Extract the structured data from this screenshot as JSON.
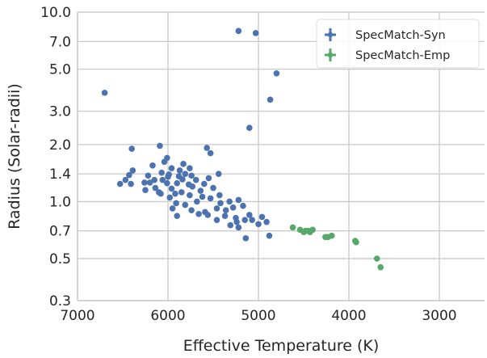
{
  "chart_data": {
    "type": "scatter",
    "xlabel": "Effective Temperature (K)",
    "ylabel": "Radius (Solar-radii)",
    "xlim": [
      7000,
      2500
    ],
    "x_reversed": true,
    "ylim": [
      0.3,
      10.0
    ],
    "yscale": "log",
    "grid": true,
    "legend_position": "top-right",
    "x_ticks": [
      7000,
      6000,
      5000,
      4000,
      3000
    ],
    "x_tick_labels": [
      "7000",
      "6000",
      "5000",
      "4000",
      "3000"
    ],
    "y_ticks": [
      0.3,
      0.5,
      0.7,
      1.0,
      1.4,
      2.0,
      3.0,
      5.0,
      7.0,
      10.0
    ],
    "y_tick_labels": [
      "0.3",
      "0.5",
      "0.7",
      "1.0",
      "1.4",
      "2.0",
      "3.0",
      "5.0",
      "7.0",
      "10.0"
    ],
    "series": [
      {
        "name": "SpecMatch-Syn",
        "color": "#4c72b0",
        "points": [
          [
            6700,
            3.75
          ],
          [
            5220,
            7.95
          ],
          [
            5030,
            7.75
          ],
          [
            4800,
            4.75
          ],
          [
            4870,
            3.45
          ],
          [
            5100,
            2.45
          ],
          [
            6090,
            1.97
          ],
          [
            5570,
            1.92
          ],
          [
            6400,
            1.9
          ],
          [
            5530,
            1.8
          ],
          [
            6010,
            1.7
          ],
          [
            6040,
            1.62
          ],
          [
            6170,
            1.55
          ],
          [
            5830,
            1.58
          ],
          [
            5960,
            1.5
          ],
          [
            5760,
            1.5
          ],
          [
            6390,
            1.46
          ],
          [
            5870,
            1.46
          ],
          [
            6070,
            1.42
          ],
          [
            5810,
            1.4
          ],
          [
            5990,
            1.39
          ],
          [
            6430,
            1.38
          ],
          [
            6220,
            1.37
          ],
          [
            6000,
            1.35
          ],
          [
            5880,
            1.36
          ],
          [
            5740,
            1.37
          ],
          [
            5440,
            1.4
          ],
          [
            5550,
            1.33
          ],
          [
            6470,
            1.3
          ],
          [
            6150,
            1.3
          ],
          [
            6060,
            1.3
          ],
          [
            5840,
            1.31
          ],
          [
            5690,
            1.3
          ],
          [
            6530,
            1.24
          ],
          [
            6410,
            1.24
          ],
          [
            6260,
            1.26
          ],
          [
            6200,
            1.26
          ],
          [
            6010,
            1.25
          ],
          [
            5900,
            1.25
          ],
          [
            5770,
            1.23
          ],
          [
            5600,
            1.24
          ],
          [
            6140,
            1.18
          ],
          [
            5960,
            1.17
          ],
          [
            5730,
            1.2
          ],
          [
            6250,
            1.15
          ],
          [
            6100,
            1.12
          ],
          [
            6080,
            1.1
          ],
          [
            5920,
            1.1
          ],
          [
            5850,
            1.12
          ],
          [
            5640,
            1.14
          ],
          [
            5500,
            1.18
          ],
          [
            5980,
            1.05
          ],
          [
            5760,
            1.08
          ],
          [
            5620,
            1.06
          ],
          [
            5530,
            1.04
          ],
          [
            5430,
            1.08
          ],
          [
            5910,
            0.98
          ],
          [
            5810,
            0.96
          ],
          [
            5680,
            1.0
          ],
          [
            5420,
            0.98
          ],
          [
            5320,
            1.0
          ],
          [
            5220,
            1.02
          ],
          [
            5950,
            0.92
          ],
          [
            5740,
            0.9
          ],
          [
            5590,
            0.88
          ],
          [
            5460,
            0.92
          ],
          [
            5360,
            0.9
          ],
          [
            5280,
            0.93
          ],
          [
            5170,
            0.95
          ],
          [
            5900,
            0.84
          ],
          [
            5660,
            0.86
          ],
          [
            5560,
            0.85
          ],
          [
            5460,
            0.8
          ],
          [
            5370,
            0.84
          ],
          [
            5250,
            0.82
          ],
          [
            5100,
            0.85
          ],
          [
            5070,
            0.8
          ],
          [
            4960,
            0.83
          ],
          [
            5240,
            0.78
          ],
          [
            5150,
            0.8
          ],
          [
            5310,
            0.75
          ],
          [
            5220,
            0.73
          ],
          [
            4910,
            0.78
          ],
          [
            5000,
            0.76
          ],
          [
            5140,
            0.64
          ],
          [
            4880,
            0.66
          ]
        ]
      },
      {
        "name": "SpecMatch-Emp",
        "color": "#55a868",
        "points": [
          [
            4620,
            0.73
          ],
          [
            4540,
            0.71
          ],
          [
            4500,
            0.69
          ],
          [
            4480,
            0.7
          ],
          [
            4450,
            0.7
          ],
          [
            4430,
            0.69
          ],
          [
            4400,
            0.71
          ],
          [
            4260,
            0.65
          ],
          [
            4230,
            0.65
          ],
          [
            4190,
            0.66
          ],
          [
            3930,
            0.62
          ],
          [
            3920,
            0.61
          ],
          [
            3690,
            0.5
          ],
          [
            3650,
            0.45
          ]
        ]
      }
    ]
  }
}
